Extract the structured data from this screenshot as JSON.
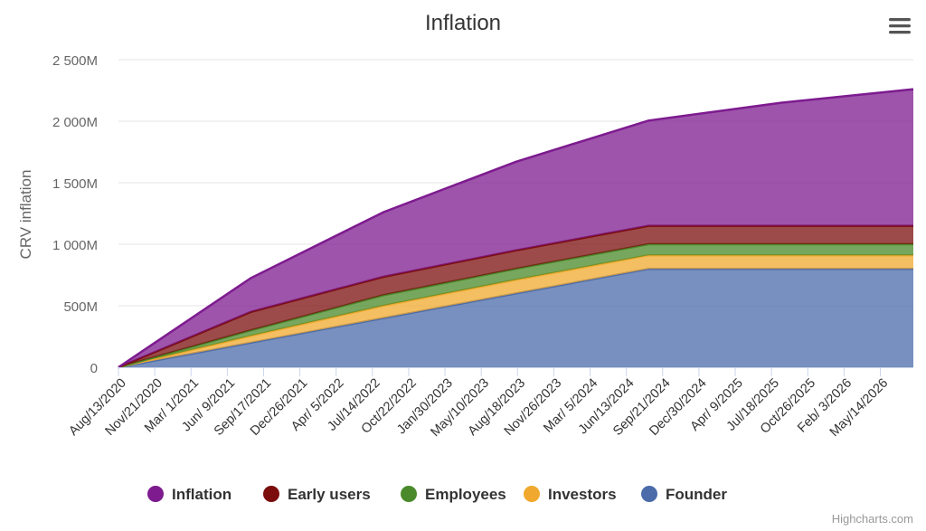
{
  "chart_data": {
    "type": "area",
    "stacked": true,
    "title": "Inflation",
    "ylabel": "CRV inflation",
    "xlabel": "",
    "ylim": [
      0,
      2500000000
    ],
    "yticks": [
      {
        "value": 0,
        "label": "0"
      },
      {
        "value": 500000000,
        "label": "500M"
      },
      {
        "value": 1000000000,
        "label": "1 000M"
      },
      {
        "value": 1500000000,
        "label": "1 500M"
      },
      {
        "value": 2000000000,
        "label": "2 000M"
      },
      {
        "value": 2500000000,
        "label": "2 500M"
      }
    ],
    "x_dates": [
      "2020-08-13",
      "2021-08-13",
      "2022-08-13",
      "2023-08-13",
      "2024-08-13",
      "2025-08-13",
      "2026-08-13"
    ],
    "x_tick_labels": [
      {
        "date": "2020-08-13",
        "label": "Aug/13/2020"
      },
      {
        "date": "2020-11-21",
        "label": "Nov/21/2020"
      },
      {
        "date": "2021-03-01",
        "label": "Mar/ 1/2021"
      },
      {
        "date": "2021-06-09",
        "label": "Jun/ 9/2021"
      },
      {
        "date": "2021-09-17",
        "label": "Sep/17/2021"
      },
      {
        "date": "2021-12-26",
        "label": "Dec/26/2021"
      },
      {
        "date": "2022-04-05",
        "label": "Apr/ 5/2022"
      },
      {
        "date": "2022-07-14",
        "label": "Jul/14/2022"
      },
      {
        "date": "2022-10-22",
        "label": "Oct/22/2022"
      },
      {
        "date": "2023-01-30",
        "label": "Jan/30/2023"
      },
      {
        "date": "2023-05-10",
        "label": "May/10/2023"
      },
      {
        "date": "2023-08-18",
        "label": "Aug/18/2023"
      },
      {
        "date": "2023-11-26",
        "label": "Nov/26/2023"
      },
      {
        "date": "2024-03-05",
        "label": "Mar/ 5/2024"
      },
      {
        "date": "2024-06-13",
        "label": "Jun/13/2024"
      },
      {
        "date": "2024-09-21",
        "label": "Sep/21/2024"
      },
      {
        "date": "2024-12-30",
        "label": "Dec/30/2024"
      },
      {
        "date": "2025-04-09",
        "label": "Apr/ 9/2025"
      },
      {
        "date": "2025-07-18",
        "label": "Jul/18/2025"
      },
      {
        "date": "2025-10-26",
        "label": "Oct/26/2025"
      },
      {
        "date": "2026-02-03",
        "label": "Feb/ 3/2026"
      },
      {
        "date": "2026-05-14",
        "label": "May/14/2026"
      }
    ],
    "series": [
      {
        "name": "Founder",
        "color": "#4b6ba9",
        "values": [
          0,
          200000000,
          400000000,
          600000000,
          800000000,
          800000000,
          800000000
        ]
      },
      {
        "name": "Investors",
        "color": "#f0a92e",
        "values": [
          0,
          55000000,
          100000000,
          110000000,
          110000000,
          110000000,
          110000000
        ]
      },
      {
        "name": "Employees",
        "color": "#4a8a2a",
        "values": [
          0,
          45000000,
          85000000,
          90000000,
          90000000,
          90000000,
          90000000
        ]
      },
      {
        "name": "Early users",
        "color": "#7b0d0d",
        "values": [
          0,
          150000000,
          150000000,
          150000000,
          150000000,
          150000000,
          150000000
        ]
      },
      {
        "name": "Inflation",
        "color": "#7d1b8f",
        "values": [
          0,
          275000000,
          525000000,
          720000000,
          855000000,
          1000000000,
          1110000000
        ]
      }
    ],
    "legend_order": [
      "Inflation",
      "Early users",
      "Employees",
      "Investors",
      "Founder"
    ],
    "legend_position": "bottom-center",
    "grid": true
  },
  "ui": {
    "menu_icon": "hamburger-menu-icon",
    "credits": "Highcharts.com"
  }
}
